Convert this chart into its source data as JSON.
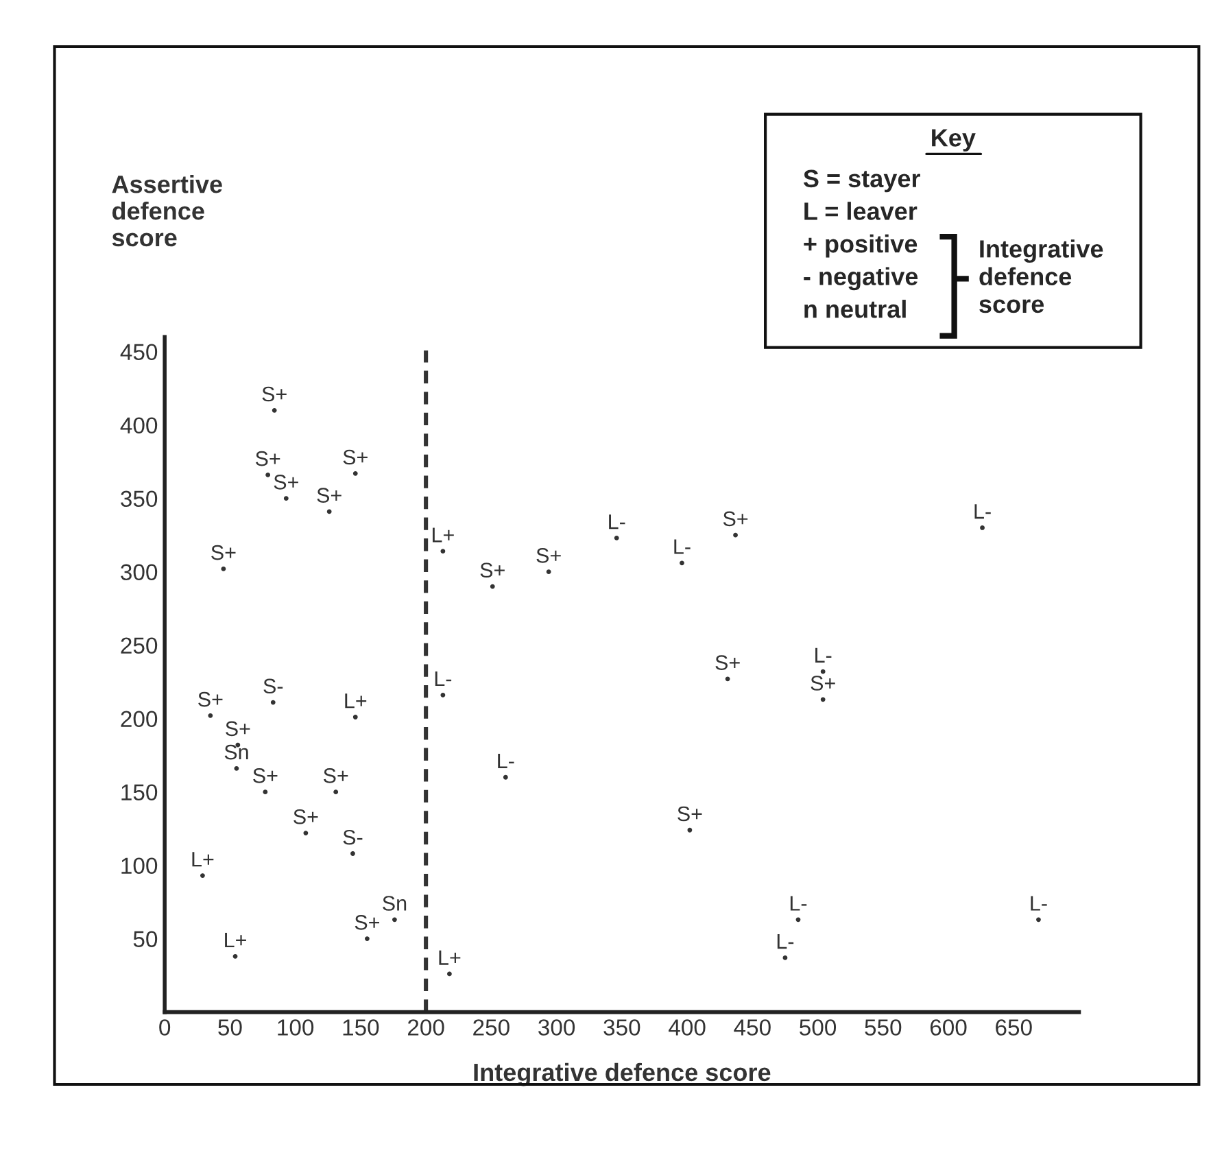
{
  "chart_data": {
    "type": "scatter",
    "xlabel": "Integrative defence score",
    "ylabel": "Assertive\ndefence\nscore",
    "xlim": [
      0,
      700
    ],
    "ylim": [
      0,
      460
    ],
    "xticks": [
      0,
      50,
      100,
      150,
      200,
      250,
      300,
      350,
      400,
      450,
      500,
      550,
      600,
      650
    ],
    "yticks": [
      50,
      100,
      150,
      200,
      250,
      300,
      350,
      400,
      450
    ],
    "marker": "circle",
    "grid": false,
    "legend": false,
    "ref_lines": [
      {
        "axis": "x",
        "value": 200,
        "color": "#333333",
        "line_style": "dashed"
      }
    ],
    "annotations": [
      "Key",
      "S = stayer",
      "L = leaver",
      "+ positive",
      "- negative",
      "n neutral",
      "Integrative\ndefence\nscore"
    ],
    "series": [
      {
        "name": "S+",
        "color": "#333333",
        "x": [
          84,
          79,
          146,
          93,
          126,
          45,
          251,
          294,
          35,
          56,
          77,
          131,
          108,
          155,
          437,
          431,
          504,
          402
        ],
        "values": [
          410,
          366,
          367,
          350,
          341,
          302,
          290,
          300,
          202,
          182,
          150,
          150,
          122,
          50,
          325,
          227,
          213,
          124
        ]
      },
      {
        "name": "S-",
        "color": "#333333",
        "x": [
          83,
          144
        ],
        "values": [
          211,
          108
        ]
      },
      {
        "name": "Sn",
        "color": "#333333",
        "x": [
          55,
          176
        ],
        "values": [
          166,
          63
        ]
      },
      {
        "name": "L+",
        "color": "#333333",
        "x": [
          213,
          146,
          29,
          54,
          218
        ],
        "values": [
          314,
          201,
          93,
          38,
          26
        ]
      },
      {
        "name": "L-",
        "color": "#333333",
        "x": [
          213,
          261,
          346,
          396,
          626,
          504,
          669,
          485,
          475
        ],
        "values": [
          216,
          160,
          323,
          306,
          330,
          232,
          63,
          63,
          37
        ]
      }
    ]
  }
}
